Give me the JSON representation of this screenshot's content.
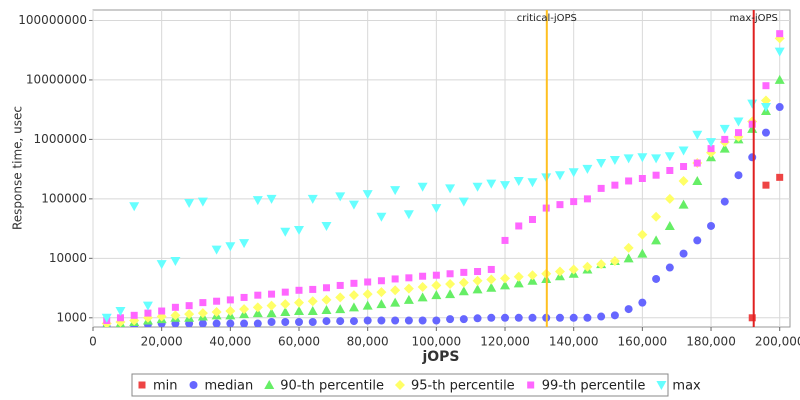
{
  "chart_data": {
    "type": "scatter",
    "x_label": "jOPS",
    "y_label": "Response time, usec",
    "log_y": true,
    "grid": true,
    "legend": "bottom",
    "xlim": [
      0,
      203000
    ],
    "ylim": [
      700,
      150000000
    ],
    "xticks": [
      {
        "value": 0,
        "label": "0"
      },
      {
        "value": 20000,
        "label": "20,000"
      },
      {
        "value": 40000,
        "label": "40,000"
      },
      {
        "value": 60000,
        "label": "60,000"
      },
      {
        "value": 80000,
        "label": "80,000"
      },
      {
        "value": 100000,
        "label": "100,000"
      },
      {
        "value": 120000,
        "label": "120,000"
      },
      {
        "value": 140000,
        "label": "140,000"
      },
      {
        "value": 160000,
        "label": "160,000"
      },
      {
        "value": 180000,
        "label": "180,000"
      },
      {
        "value": 200000,
        "label": "200,000"
      }
    ],
    "yticks": [
      1000,
      10000,
      100000,
      1000000,
      10000000,
      100000000
    ],
    "markers": [
      {
        "label": "critical-jOPS",
        "x": 132170,
        "color": "#ffc020"
      },
      {
        "label": "max-jOPS",
        "x": 192430,
        "color": "#e02020"
      }
    ],
    "x": [
      4000,
      8000,
      12000,
      16000,
      20000,
      24000,
      28000,
      32000,
      36000,
      40000,
      44000,
      48000,
      52000,
      56000,
      60000,
      64000,
      68000,
      72000,
      76000,
      80000,
      84000,
      88000,
      92000,
      96000,
      100000,
      104000,
      108000,
      112000,
      116000,
      120000,
      124000,
      128000,
      132000,
      136000,
      140000,
      144000,
      148000,
      152000,
      156000,
      160000,
      164000,
      168000,
      172000,
      176000,
      180000,
      184000,
      188000,
      192000,
      196000,
      200000
    ],
    "series": [
      {
        "name": "min",
        "color": "#ee4444",
        "marker": "square",
        "values": [
          null,
          null,
          null,
          null,
          null,
          null,
          null,
          null,
          null,
          null,
          null,
          null,
          null,
          null,
          null,
          null,
          null,
          null,
          null,
          null,
          null,
          null,
          null,
          null,
          null,
          null,
          null,
          null,
          null,
          null,
          null,
          null,
          null,
          null,
          null,
          null,
          null,
          null,
          null,
          null,
          null,
          null,
          null,
          null,
          null,
          null,
          null,
          1000,
          170000,
          230000
        ]
      },
      {
        "name": "median",
        "color": "#6666ff",
        "marker": "circle",
        "values": [
          700,
          700,
          750,
          780,
          800,
          800,
          800,
          800,
          800,
          800,
          800,
          800,
          850,
          850,
          850,
          850,
          880,
          880,
          880,
          900,
          900,
          900,
          900,
          900,
          900,
          950,
          950,
          980,
          1000,
          1000,
          1000,
          1000,
          1000,
          1000,
          1000,
          1000,
          1050,
          1100,
          1400,
          1800,
          4500,
          7000,
          12000,
          20000,
          35000,
          90000,
          250000,
          500000,
          1300000,
          3500000
        ]
      },
      {
        "name": "90-th percentile",
        "color": "#66ee66",
        "marker": "triangle",
        "values": [
          750,
          800,
          850,
          900,
          950,
          1000,
          1000,
          1050,
          1100,
          1100,
          1150,
          1200,
          1200,
          1250,
          1300,
          1300,
          1350,
          1400,
          1500,
          1600,
          1700,
          1800,
          2000,
          2200,
          2400,
          2500,
          2800,
          3000,
          3200,
          3500,
          3800,
          4200,
          4500,
          5000,
          5500,
          6500,
          8000,
          9000,
          10000,
          12000,
          20000,
          35000,
          80000,
          200000,
          500000,
          700000,
          1000000,
          1500000,
          3000000,
          10000000
        ]
      },
      {
        "name": "95-th percentile",
        "color": "#ffff66",
        "marker": "diamond",
        "values": [
          800,
          850,
          900,
          1000,
          1050,
          1100,
          1150,
          1200,
          1250,
          1300,
          1400,
          1500,
          1600,
          1700,
          1800,
          1900,
          2000,
          2200,
          2400,
          2500,
          2700,
          2900,
          3100,
          3300,
          3500,
          3700,
          3900,
          4200,
          4400,
          4600,
          4900,
          5200,
          5500,
          6000,
          6500,
          7200,
          8000,
          9000,
          15000,
          25000,
          50000,
          100000,
          200000,
          400000,
          600000,
          900000,
          1100000,
          2000000,
          4500000,
          50000000
        ]
      },
      {
        "name": "99-th percentile",
        "color": "#ff66ff",
        "marker": "square",
        "values": [
          900,
          1000,
          1100,
          1200,
          1300,
          1500,
          1600,
          1800,
          1900,
          2000,
          2200,
          2400,
          2500,
          2700,
          2900,
          3000,
          3200,
          3500,
          3800,
          4000,
          4200,
          4500,
          4700,
          5000,
          5200,
          5500,
          5800,
          6000,
          6500,
          20000,
          35000,
          45000,
          70000,
          80000,
          90000,
          100000,
          150000,
          170000,
          200000,
          220000,
          250000,
          300000,
          350000,
          400000,
          700000,
          1000000,
          1300000,
          1800000,
          8000000,
          60000000
        ]
      },
      {
        "name": "max",
        "color": "#66ffff",
        "marker": "triangle-down",
        "values": [
          1000,
          1300,
          75000,
          1600,
          8000,
          9000,
          85000,
          90000,
          14000,
          16000,
          18000,
          95000,
          100000,
          28000,
          30000,
          100000,
          35000,
          110000,
          80000,
          120000,
          50000,
          140000,
          55000,
          160000,
          70000,
          150000,
          90000,
          160000,
          180000,
          170000,
          200000,
          190000,
          230000,
          250000,
          280000,
          320000,
          400000,
          450000,
          480000,
          500000,
          480000,
          520000,
          650000,
          1200000,
          900000,
          1500000,
          2000000,
          4000000,
          3500000,
          30000000
        ]
      }
    ]
  }
}
